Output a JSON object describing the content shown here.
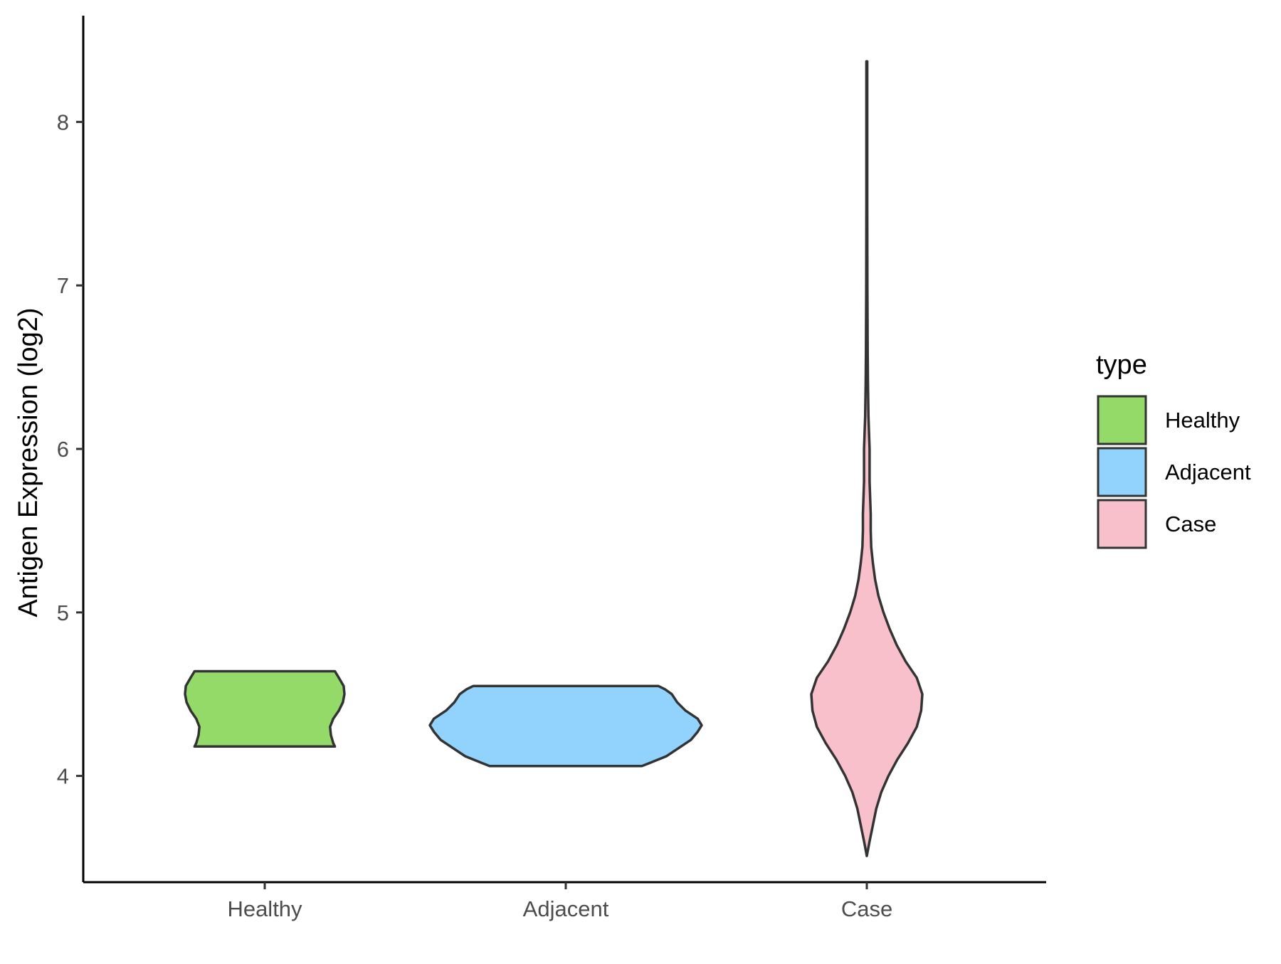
{
  "chart_data": {
    "type": "violin",
    "title": "",
    "xlabel": "",
    "ylabel": "Antigen Expression (log2)",
    "categories": [
      "Healthy",
      "Adjacent",
      "Case"
    ],
    "y_ticks": [
      4,
      5,
      6,
      7,
      8
    ],
    "ylim": [
      3.35,
      8.65
    ],
    "grid": false,
    "legend": {
      "title": "type",
      "position": "right",
      "entries": [
        "Healthy",
        "Adjacent",
        "Case"
      ]
    },
    "colors": {
      "Healthy": "#93DA69",
      "Adjacent": "#92D3FE",
      "Case": "#F8C0CB",
      "outline": "#333333"
    },
    "series": [
      {
        "name": "Healthy",
        "range": [
          4.18,
          4.64
        ],
        "density": [
          [
            4.18,
            0.88
          ],
          [
            4.2,
            0.86
          ],
          [
            4.25,
            0.83
          ],
          [
            4.3,
            0.82
          ],
          [
            4.35,
            0.86
          ],
          [
            4.4,
            0.93
          ],
          [
            4.45,
            0.98
          ],
          [
            4.5,
            1.0
          ],
          [
            4.55,
            0.99
          ],
          [
            4.6,
            0.93
          ],
          [
            4.64,
            0.88
          ]
        ]
      },
      {
        "name": "Adjacent",
        "range": [
          4.06,
          4.55
        ],
        "density": [
          [
            4.06,
            0.56
          ],
          [
            4.08,
            0.62
          ],
          [
            4.12,
            0.74
          ],
          [
            4.17,
            0.83
          ],
          [
            4.22,
            0.92
          ],
          [
            4.27,
            0.97
          ],
          [
            4.31,
            1.0
          ],
          [
            4.35,
            0.97
          ],
          [
            4.4,
            0.88
          ],
          [
            4.45,
            0.82
          ],
          [
            4.5,
            0.78
          ],
          [
            4.53,
            0.73
          ],
          [
            4.55,
            0.68
          ]
        ]
      },
      {
        "name": "Case",
        "range": [
          3.51,
          8.37
        ],
        "density": [
          [
            3.51,
            0.0
          ],
          [
            3.6,
            0.05
          ],
          [
            3.7,
            0.11
          ],
          [
            3.8,
            0.17
          ],
          [
            3.9,
            0.26
          ],
          [
            4.0,
            0.39
          ],
          [
            4.1,
            0.55
          ],
          [
            4.2,
            0.74
          ],
          [
            4.3,
            0.9
          ],
          [
            4.4,
            0.98
          ],
          [
            4.5,
            1.0
          ],
          [
            4.6,
            0.9
          ],
          [
            4.7,
            0.7
          ],
          [
            4.8,
            0.54
          ],
          [
            4.9,
            0.41
          ],
          [
            5.0,
            0.3
          ],
          [
            5.1,
            0.21
          ],
          [
            5.2,
            0.15
          ],
          [
            5.3,
            0.11
          ],
          [
            5.4,
            0.08
          ],
          [
            5.5,
            0.07
          ],
          [
            5.6,
            0.07
          ],
          [
            5.7,
            0.06
          ],
          [
            5.8,
            0.05
          ],
          [
            5.9,
            0.05
          ],
          [
            6.0,
            0.05
          ],
          [
            6.2,
            0.03
          ],
          [
            6.4,
            0.02
          ],
          [
            6.6,
            0.015
          ],
          [
            7.0,
            0.01
          ],
          [
            7.5,
            0.008
          ],
          [
            8.0,
            0.008
          ],
          [
            8.37,
            0.008
          ]
        ]
      }
    ]
  }
}
